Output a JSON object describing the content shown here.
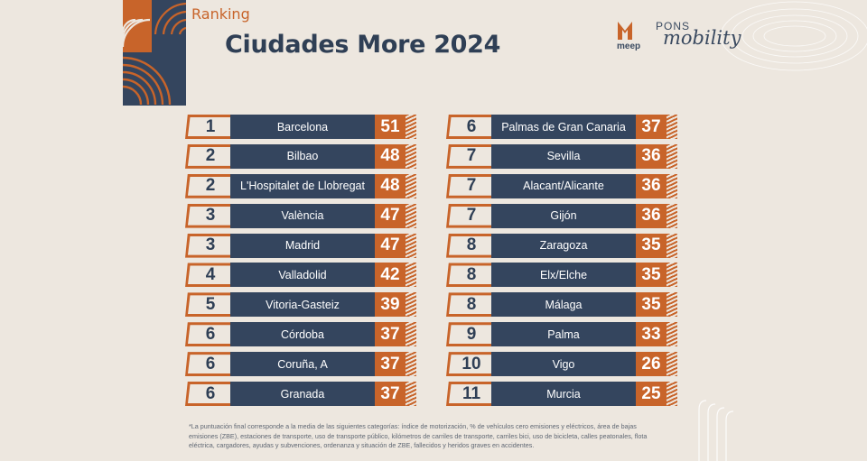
{
  "header": {
    "subtitle": "Ranking",
    "title": "Ciudades More 2024"
  },
  "logos": {
    "meep": "meep",
    "pons": "PONS",
    "mobility": "mobility"
  },
  "colors": {
    "accent": "#c8642a",
    "navy": "#34455e",
    "background": "#ede7df"
  },
  "ranking_left": [
    {
      "rank": "1",
      "city": "Barcelona",
      "score": "51"
    },
    {
      "rank": "2",
      "city": "Bilbao",
      "score": "48"
    },
    {
      "rank": "2",
      "city": "L'Hospitalet de Llobregat",
      "score": "48"
    },
    {
      "rank": "3",
      "city": "València",
      "score": "47"
    },
    {
      "rank": "3",
      "city": "Madrid",
      "score": "47"
    },
    {
      "rank": "4",
      "city": "Valladolid",
      "score": "42"
    },
    {
      "rank": "5",
      "city": "Vitoria-Gasteiz",
      "score": "39"
    },
    {
      "rank": "6",
      "city": "Córdoba",
      "score": "37"
    },
    {
      "rank": "6",
      "city": "Coruña, A",
      "score": "37"
    },
    {
      "rank": "6",
      "city": "Granada",
      "score": "37"
    }
  ],
  "ranking_right": [
    {
      "rank": "6",
      "city": "Palmas de Gran Canaria",
      "score": "37"
    },
    {
      "rank": "7",
      "city": "Sevilla",
      "score": "36"
    },
    {
      "rank": "7",
      "city": "Alacant/Alicante",
      "score": "36"
    },
    {
      "rank": "7",
      "city": "Gijón",
      "score": "36"
    },
    {
      "rank": "8",
      "city": "Zaragoza",
      "score": "35"
    },
    {
      "rank": "8",
      "city": "Elx/Elche",
      "score": "35"
    },
    {
      "rank": "8",
      "city": "Málaga",
      "score": "35"
    },
    {
      "rank": "9",
      "city": "Palma",
      "score": "33"
    },
    {
      "rank": "10",
      "city": "Vigo",
      "score": "26"
    },
    {
      "rank": "11",
      "city": "Murcia",
      "score": "25"
    }
  ],
  "footnote": "*La puntuación final corresponde a la media de las siguientes categorías: índice de motorización, % de vehículos cero emisiones y eléctricos, área de bajas emisiones (ZBE), estaciones de transporte, uso de transporte público, kilómetros de carriles de transporte, carriles bici, uso de bicicleta, calles peatonales, flota eléctrica, cargadores, ayudas y subvenciones, ordenanza y situación de ZBE, fallecidos y heridos graves en accidentes."
}
